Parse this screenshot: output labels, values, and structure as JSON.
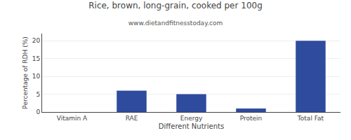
{
  "chart_data": {
    "type": "bar",
    "title": "Rice, brown, long-grain, cooked per 100g",
    "subtitle": "www.dietandfitnesstoday.com",
    "xlabel": "Different Nutrients",
    "ylabel": "Percentage of RDH (%)",
    "categories": [
      "Vitamin A",
      "RAE",
      "Energy",
      "Protein",
      "Total Fat"
    ],
    "values": [
      0,
      6,
      5,
      1,
      20
    ],
    "color": "#2e4b9e",
    "ylim": [
      0,
      22
    ],
    "yticks": [
      0,
      5,
      10,
      15,
      20
    ],
    "grid": true
  }
}
